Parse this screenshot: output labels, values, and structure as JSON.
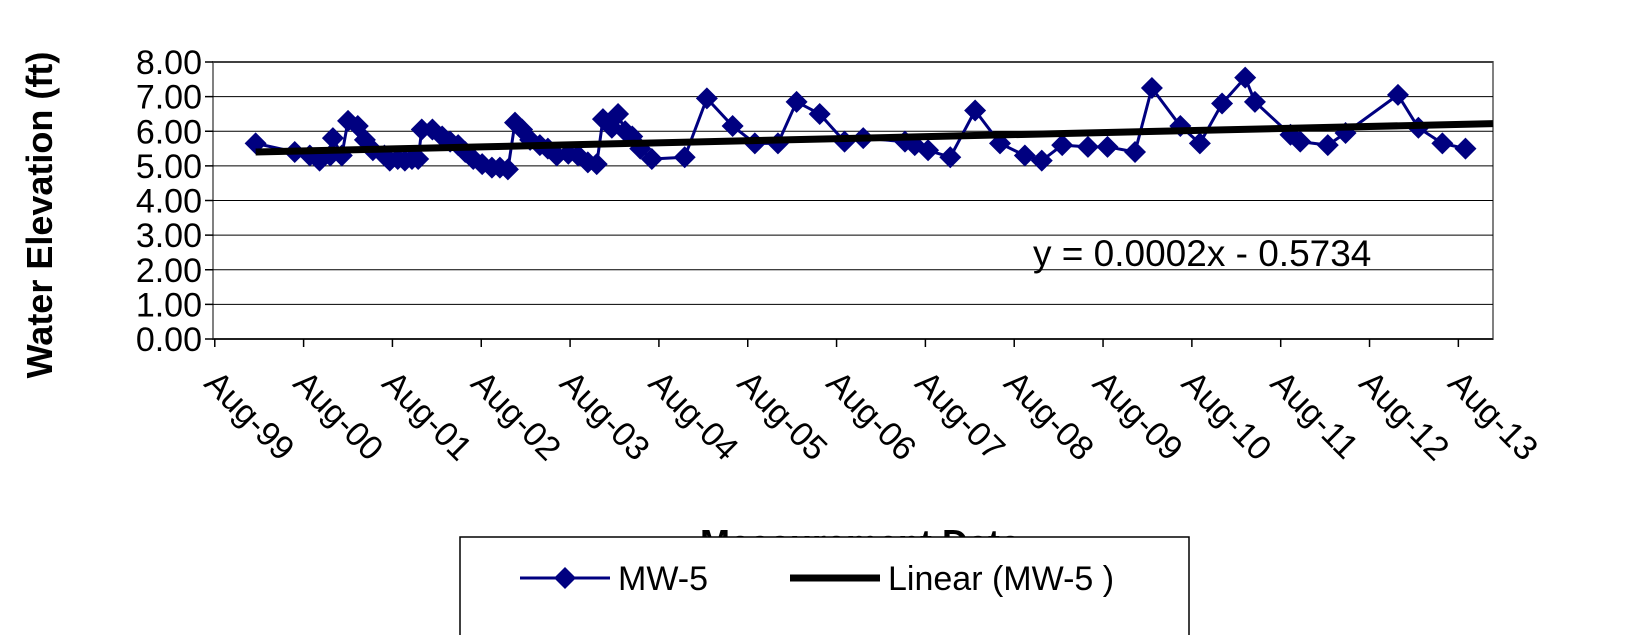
{
  "chart_data": {
    "type": "line",
    "y_label": "Water Elevation (ft)",
    "x_label": "Measurement Date",
    "annotation": "y = 0.0002x - 0.5734",
    "xlim": [
      1999.56,
      2013.97
    ],
    "xticks": [
      {
        "value": 1999.58,
        "label": "Aug-99"
      },
      {
        "value": 2000.58,
        "label": "Aug-00"
      },
      {
        "value": 2001.58,
        "label": "Aug-01"
      },
      {
        "value": 2002.58,
        "label": "Aug-02"
      },
      {
        "value": 2003.58,
        "label": "Aug-03"
      },
      {
        "value": 2004.58,
        "label": "Aug-04"
      },
      {
        "value": 2005.58,
        "label": "Aug-05"
      },
      {
        "value": 2006.58,
        "label": "Aug-06"
      },
      {
        "value": 2007.58,
        "label": "Aug-07"
      },
      {
        "value": 2008.58,
        "label": "Aug-08"
      },
      {
        "value": 2009.58,
        "label": "Aug-09"
      },
      {
        "value": 2010.58,
        "label": "Aug-10"
      },
      {
        "value": 2011.58,
        "label": "Aug-11"
      },
      {
        "value": 2012.58,
        "label": "Aug-12"
      },
      {
        "value": 2013.58,
        "label": "Aug-13"
      }
    ],
    "ylim": [
      0,
      8
    ],
    "yticks": [
      {
        "value": 0,
        "label": "0.00"
      },
      {
        "value": 1,
        "label": "1.00"
      },
      {
        "value": 2,
        "label": "2.00"
      },
      {
        "value": 3,
        "label": "3.00"
      },
      {
        "value": 4,
        "label": "4.00"
      },
      {
        "value": 5,
        "label": "5.00"
      },
      {
        "value": 6,
        "label": "6.00"
      },
      {
        "value": 7,
        "label": "7.00"
      },
      {
        "value": 8,
        "label": "8.00"
      }
    ],
    "grid": true,
    "legend": "bottom",
    "series": [
      {
        "name": "MW-5",
        "color": "#000080",
        "marker": "diamond",
        "x": [
          2000.04,
          2000.48,
          2000.65,
          2000.76,
          2000.88,
          2000.91,
          2001.01,
          2001.08,
          2001.19,
          2001.27,
          2001.36,
          2001.49,
          2001.55,
          2001.64,
          2001.72,
          2001.8,
          2001.87,
          2001.91,
          2002.03,
          2002.14,
          2002.23,
          2002.32,
          2002.4,
          2002.49,
          2002.59,
          2002.7,
          2002.79,
          2002.88,
          2002.96,
          2003.04,
          2003.13,
          2003.24,
          2003.33,
          2003.43,
          2003.56,
          2003.67,
          2003.78,
          2003.88,
          2003.95,
          2004.05,
          2004.12,
          2004.2,
          2004.28,
          2004.37,
          2004.5,
          2004.87,
          2005.12,
          2005.41,
          2005.66,
          2005.92,
          2006.13,
          2006.39,
          2006.67,
          2006.88,
          2007.35,
          2007.46,
          2007.61,
          2007.86,
          2008.14,
          2008.42,
          2008.7,
          2008.89,
          2009.12,
          2009.41,
          2009.63,
          2009.94,
          2010.13,
          2010.45,
          2010.67,
          2010.92,
          2011.18,
          2011.29,
          2011.69,
          2011.8,
          2012.11,
          2012.31,
          2012.9,
          2013.13,
          2013.4,
          2013.66
        ],
        "values": [
          5.65,
          5.4,
          5.3,
          5.15,
          5.3,
          5.8,
          5.3,
          6.3,
          6.15,
          5.75,
          5.45,
          5.3,
          5.15,
          5.2,
          5.15,
          5.2,
          5.2,
          6.05,
          6.05,
          5.85,
          5.7,
          5.6,
          5.4,
          5.2,
          5.05,
          4.95,
          4.95,
          4.9,
          6.25,
          6.05,
          5.75,
          5.6,
          5.5,
          5.3,
          5.35,
          5.3,
          5.1,
          5.05,
          6.35,
          6.1,
          6.5,
          6.0,
          5.85,
          5.5,
          5.2,
          5.25,
          6.95,
          6.15,
          5.65,
          5.65,
          6.85,
          6.5,
          5.7,
          5.8,
          5.7,
          5.6,
          5.45,
          5.25,
          6.6,
          5.65,
          5.3,
          5.15,
          5.6,
          5.55,
          5.55,
          5.4,
          7.25,
          6.15,
          5.65,
          6.8,
          7.55,
          6.85,
          5.9,
          5.7,
          5.6,
          5.95,
          7.05,
          6.1,
          5.65,
          5.5
        ]
      },
      {
        "name": "Linear (MW-5 )",
        "color": "#000000",
        "x": [
          2000.04,
          2013.97
        ],
        "values": [
          5.4,
          6.22
        ]
      }
    ]
  }
}
